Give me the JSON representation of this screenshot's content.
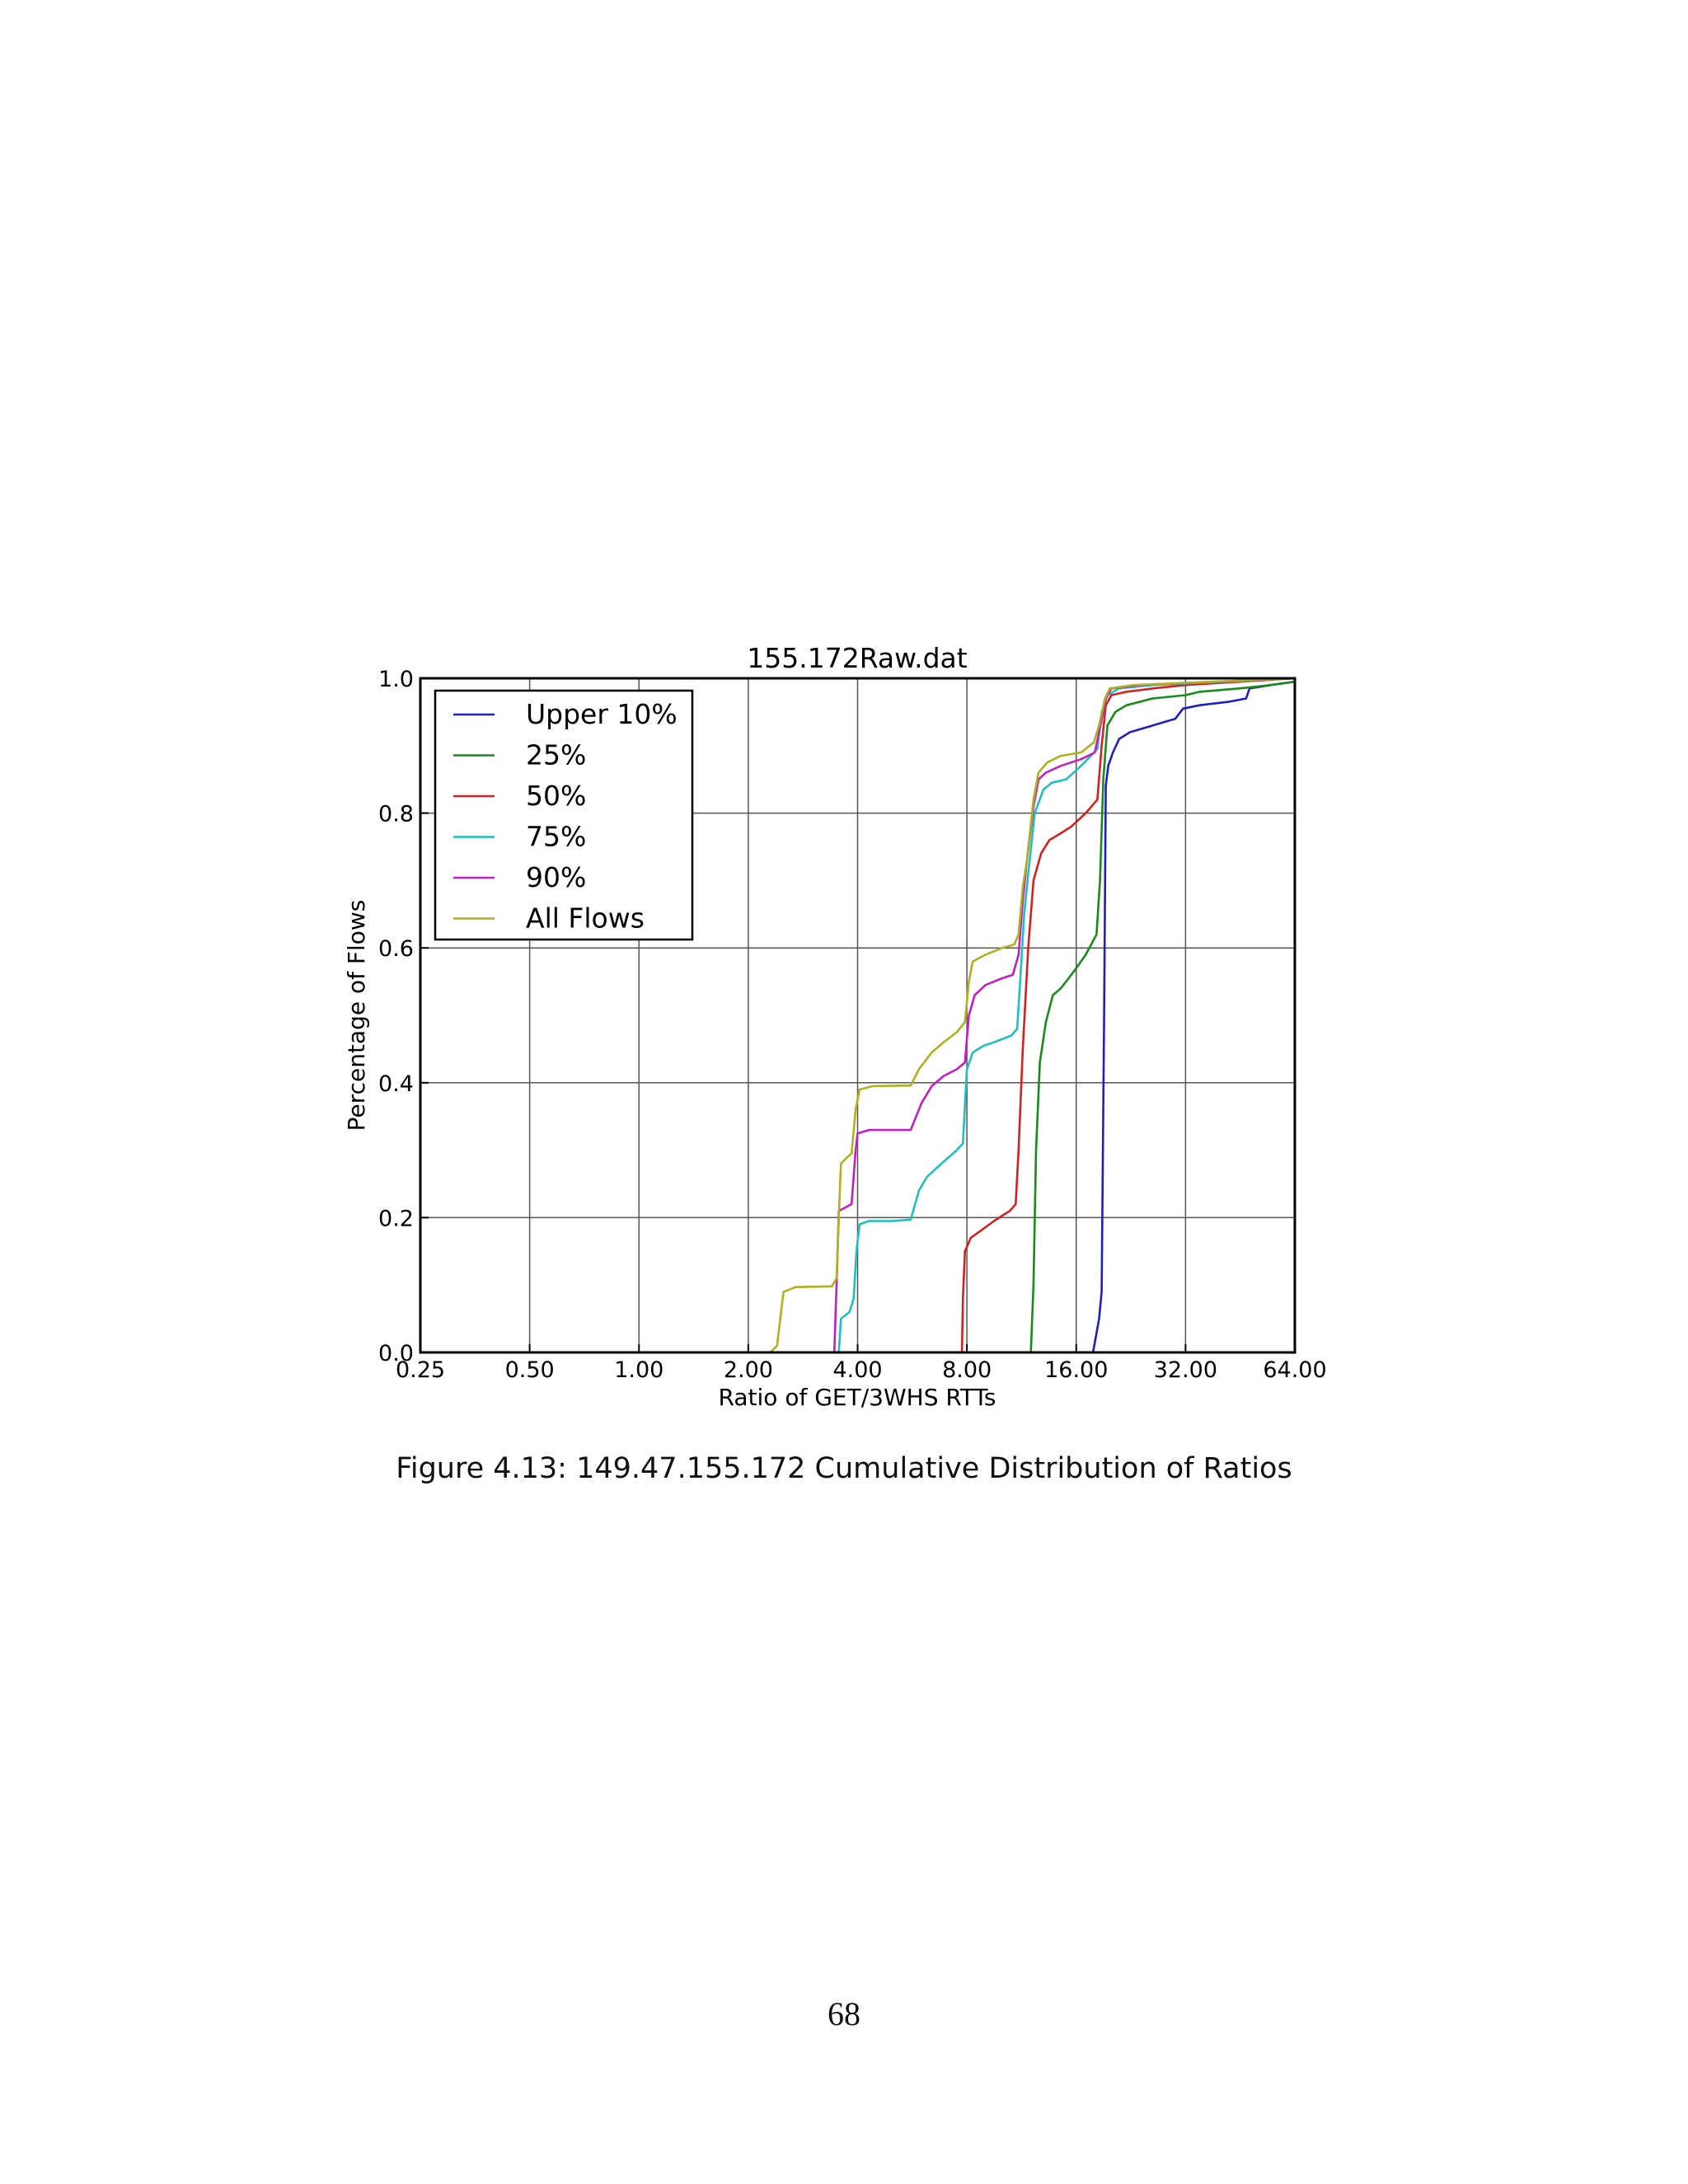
{
  "caption": "Figure 4.13: 149.47.155.172 Cumulative Distribution of Ratios",
  "page_number": "68",
  "chart_data": {
    "type": "line",
    "title": "155.172Raw.dat",
    "xlabel": "Ratio of GET/3WHS RTTs",
    "ylabel": "Percentage of Flows",
    "x_scale": "log2",
    "xlim": [
      0.25,
      64
    ],
    "ylim": [
      0,
      1
    ],
    "x_ticks": [
      0.25,
      0.5,
      1,
      2,
      4,
      8,
      16,
      32,
      64
    ],
    "x_tick_labels": [
      "0.25",
      "0.50",
      "1.00",
      "2.00",
      "4.00",
      "8.00",
      "16.00",
      "32.00",
      "64.00"
    ],
    "y_ticks": [
      0,
      0.2,
      0.4,
      0.6,
      0.8,
      1.0
    ],
    "y_tick_labels": [
      "0.0",
      "0.2",
      "0.4",
      "0.6",
      "0.8",
      "1.0"
    ],
    "grid": true,
    "legend_position": "top-left",
    "series": [
      {
        "name": "Upper 10%",
        "color": "#1f1fbf",
        "points": [
          [
            17.8,
            0
          ],
          [
            18.5,
            0.05
          ],
          [
            18.8,
            0.09
          ],
          [
            19.1,
            0.5
          ],
          [
            19.3,
            0.84
          ],
          [
            19.6,
            0.87
          ],
          [
            20.2,
            0.89
          ],
          [
            21,
            0.91
          ],
          [
            22.5,
            0.92
          ],
          [
            26,
            0.93
          ],
          [
            30,
            0.94
          ],
          [
            31.5,
            0.955
          ],
          [
            35,
            0.96
          ],
          [
            42,
            0.965
          ],
          [
            47,
            0.97
          ],
          [
            48,
            0.985
          ],
          [
            55,
            0.99
          ],
          [
            64,
            0.995
          ]
        ]
      },
      {
        "name": "25%",
        "color": "#1a8a1a",
        "points": [
          [
            12.0,
            0
          ],
          [
            12.2,
            0.1
          ],
          [
            12.4,
            0.3
          ],
          [
            12.7,
            0.43
          ],
          [
            13.2,
            0.49
          ],
          [
            13.8,
            0.53
          ],
          [
            14.5,
            0.54
          ],
          [
            15,
            0.55
          ],
          [
            16,
            0.57
          ],
          [
            17,
            0.59
          ],
          [
            18.2,
            0.62
          ],
          [
            18.6,
            0.7
          ],
          [
            19,
            0.85
          ],
          [
            19.5,
            0.93
          ],
          [
            20.5,
            0.95
          ],
          [
            22,
            0.96
          ],
          [
            26,
            0.97
          ],
          [
            32,
            0.975
          ],
          [
            35,
            0.98
          ],
          [
            45,
            0.985
          ],
          [
            55,
            0.99
          ],
          [
            64,
            0.995
          ]
        ]
      },
      {
        "name": "50%",
        "color": "#d42020",
        "points": [
          [
            7.75,
            0
          ],
          [
            7.8,
            0.08
          ],
          [
            7.9,
            0.15
          ],
          [
            8.2,
            0.17
          ],
          [
            8.7,
            0.18
          ],
          [
            9.5,
            0.195
          ],
          [
            10.5,
            0.21
          ],
          [
            10.9,
            0.22
          ],
          [
            11.1,
            0.3
          ],
          [
            11.4,
            0.45
          ],
          [
            11.8,
            0.6
          ],
          [
            12.2,
            0.7
          ],
          [
            12.8,
            0.74
          ],
          [
            13.5,
            0.76
          ],
          [
            14.5,
            0.77
          ],
          [
            15.5,
            0.78
          ],
          [
            17,
            0.8
          ],
          [
            18.3,
            0.82
          ],
          [
            18.8,
            0.9
          ],
          [
            19.3,
            0.96
          ],
          [
            20,
            0.975
          ],
          [
            22,
            0.98
          ],
          [
            26,
            0.985
          ],
          [
            32,
            0.99
          ],
          [
            64,
            1
          ]
        ]
      },
      {
        "name": "75%",
        "color": "#20bfbf",
        "points": [
          [
            3.55,
            0
          ],
          [
            3.6,
            0.05
          ],
          [
            3.8,
            0.06
          ],
          [
            3.9,
            0.08
          ],
          [
            3.97,
            0.15
          ],
          [
            4.05,
            0.19
          ],
          [
            4.3,
            0.195
          ],
          [
            5,
            0.195
          ],
          [
            5.6,
            0.197
          ],
          [
            5.9,
            0.24
          ],
          [
            6.2,
            0.26
          ],
          [
            6.8,
            0.28
          ],
          [
            7.5,
            0.3
          ],
          [
            7.8,
            0.31
          ],
          [
            8.0,
            0.42
          ],
          [
            8.3,
            0.445
          ],
          [
            8.9,
            0.455
          ],
          [
            9.5,
            0.46
          ],
          [
            10.6,
            0.47
          ],
          [
            11,
            0.48
          ],
          [
            11.3,
            0.58
          ],
          [
            11.5,
            0.65
          ],
          [
            11.8,
            0.71
          ],
          [
            12.3,
            0.8
          ],
          [
            13,
            0.835
          ],
          [
            13.7,
            0.845
          ],
          [
            15,
            0.85
          ],
          [
            16.5,
            0.87
          ],
          [
            18.3,
            0.895
          ],
          [
            18.8,
            0.95
          ],
          [
            19.5,
            0.975
          ],
          [
            21,
            0.985
          ],
          [
            26,
            0.99
          ],
          [
            64,
            1
          ]
        ]
      },
      {
        "name": "90%",
        "color": "#c020c0",
        "points": [
          [
            3.45,
            0
          ],
          [
            3.5,
            0.1
          ],
          [
            3.55,
            0.21
          ],
          [
            3.7,
            0.215
          ],
          [
            3.85,
            0.22
          ],
          [
            3.95,
            0.3
          ],
          [
            4.0,
            0.325
          ],
          [
            4.3,
            0.33
          ],
          [
            5.6,
            0.33
          ],
          [
            6.0,
            0.37
          ],
          [
            6.4,
            0.395
          ],
          [
            6.9,
            0.41
          ],
          [
            7.5,
            0.42
          ],
          [
            7.9,
            0.43
          ],
          [
            8.1,
            0.5
          ],
          [
            8.4,
            0.53
          ],
          [
            9,
            0.545
          ],
          [
            10,
            0.555
          ],
          [
            10.7,
            0.56
          ],
          [
            11.1,
            0.59
          ],
          [
            11.4,
            0.67
          ],
          [
            11.7,
            0.73
          ],
          [
            12.2,
            0.81
          ],
          [
            12.6,
            0.85
          ],
          [
            13.2,
            0.86
          ],
          [
            14.5,
            0.87
          ],
          [
            16.5,
            0.88
          ],
          [
            18,
            0.89
          ],
          [
            18.5,
            0.92
          ],
          [
            19.3,
            0.97
          ],
          [
            20,
            0.985
          ],
          [
            24,
            0.99
          ],
          [
            64,
            1
          ]
        ]
      },
      {
        "name": "All Flows",
        "color": "#b0b020",
        "points": [
          [
            2.3,
            0
          ],
          [
            2.4,
            0.01
          ],
          [
            2.5,
            0.09
          ],
          [
            2.7,
            0.097
          ],
          [
            3.4,
            0.098
          ],
          [
            3.5,
            0.11
          ],
          [
            3.55,
            0.2
          ],
          [
            3.6,
            0.28
          ],
          [
            3.75,
            0.29
          ],
          [
            3.85,
            0.295
          ],
          [
            3.95,
            0.36
          ],
          [
            4.05,
            0.39
          ],
          [
            4.4,
            0.395
          ],
          [
            5.6,
            0.396
          ],
          [
            5.9,
            0.42
          ],
          [
            6.4,
            0.445
          ],
          [
            6.9,
            0.46
          ],
          [
            7.5,
            0.475
          ],
          [
            7.9,
            0.49
          ],
          [
            8.1,
            0.55
          ],
          [
            8.3,
            0.58
          ],
          [
            9,
            0.59
          ],
          [
            10,
            0.6
          ],
          [
            10.8,
            0.605
          ],
          [
            11.1,
            0.62
          ],
          [
            11.4,
            0.69
          ],
          [
            11.7,
            0.73
          ],
          [
            12.2,
            0.82
          ],
          [
            12.6,
            0.86
          ],
          [
            13.3,
            0.875
          ],
          [
            14.5,
            0.885
          ],
          [
            16.5,
            0.89
          ],
          [
            17.9,
            0.905
          ],
          [
            18.5,
            0.93
          ],
          [
            19.2,
            0.97
          ],
          [
            19.8,
            0.985
          ],
          [
            23,
            0.99
          ],
          [
            64,
            1
          ]
        ]
      }
    ]
  }
}
